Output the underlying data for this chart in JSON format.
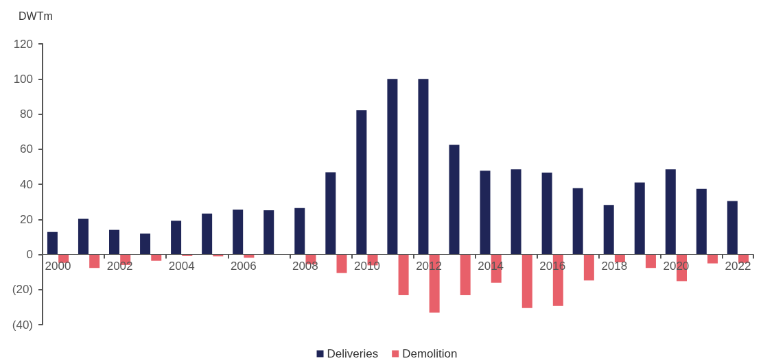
{
  "chart_data": {
    "type": "bar",
    "ylabel": "DWTm",
    "categories": [
      "2000",
      null,
      "2002",
      null,
      "2004",
      null,
      "2006",
      null,
      "2008",
      null,
      "2010",
      null,
      "2012",
      null,
      "2014",
      null,
      "2016",
      null,
      "2018",
      null,
      "2020",
      null,
      "2022"
    ],
    "series": [
      {
        "name": "Deliveries",
        "color": "#1f2557",
        "values": [
          12.8,
          20.3,
          14.0,
          11.9,
          19.2,
          23.3,
          25.6,
          25.2,
          26.4,
          46.8,
          82.1,
          100.0,
          100.0,
          62.4,
          47.7,
          48.5,
          46.6,
          37.8,
          28.2,
          41.0,
          48.5,
          37.4,
          30.4
        ]
      },
      {
        "name": "Demolition",
        "color": "#e8606a",
        "values": [
          -4.8,
          -7.7,
          -6.0,
          -3.6,
          -0.9,
          -1.1,
          -1.9,
          null,
          -5.6,
          -10.6,
          -6.2,
          -23.2,
          -33.2,
          -23.2,
          -16.1,
          -30.5,
          -29.4,
          -14.8,
          -4.5,
          -7.7,
          -15.2,
          -5.1,
          -4.8
        ]
      }
    ],
    "ylim": [
      -40,
      120
    ],
    "yticks": [
      {
        "value": -40,
        "label": "(40)"
      },
      {
        "value": -20,
        "label": "(20)"
      },
      0,
      20,
      40,
      60,
      80,
      100,
      120
    ],
    "legend": "bottom"
  }
}
